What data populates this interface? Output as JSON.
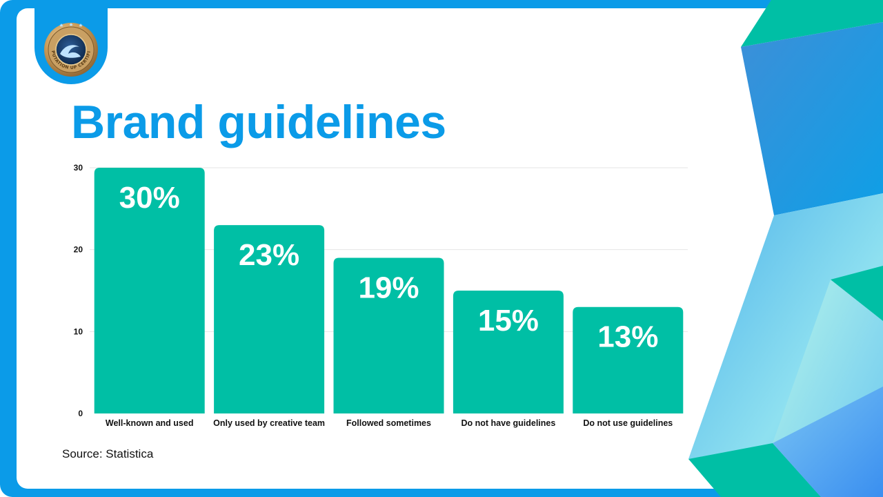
{
  "slide": {
    "title": "Brand guidelines",
    "source": "Source: Statistica",
    "seal_text": "REPUTATION UP CERTIFIED"
  },
  "colors": {
    "frame": "#0b9be8",
    "bar": "#00bfa5",
    "title": "#0b9be8"
  },
  "chart_data": {
    "type": "bar",
    "title": "Brand guidelines",
    "categories": [
      "Well-known and used",
      "Only used by creative team",
      "Followed sometimes",
      "Do not have guidelines",
      "Do not use guidelines"
    ],
    "values": [
      30,
      23,
      19,
      15,
      13
    ],
    "data_labels": [
      "30%",
      "23%",
      "19%",
      "15%",
      "13%"
    ],
    "yticks": [
      0,
      10,
      20,
      30
    ],
    "ylim": [
      0,
      30
    ],
    "xlabel": "",
    "ylabel": "",
    "grid": true,
    "legend": "none"
  }
}
